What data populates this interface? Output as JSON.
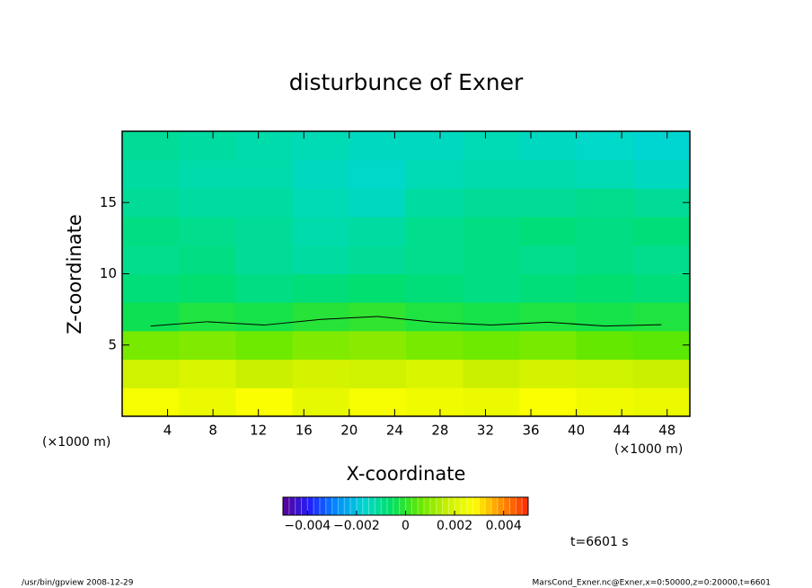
{
  "chart_data": {
    "type": "contour",
    "title": "disturbunce of Exner",
    "x_label": "X-coordinate",
    "y_label": "Z-coordinate",
    "x_unit_left": "(×1000 m)",
    "x_unit_right": "(×1000 m)",
    "x": [
      2.5,
      7.5,
      12.5,
      17.5,
      22.5,
      27.5,
      32.5,
      37.5,
      42.5,
      47.5
    ],
    "y": [
      1,
      3,
      5,
      7,
      9,
      11,
      13,
      15,
      17,
      19
    ],
    "z": [
      [
        0.0026,
        0.0024,
        0.0027,
        0.0023,
        0.0026,
        0.0025,
        0.0024,
        0.0027,
        0.0025,
        0.0024
      ],
      [
        0.0018,
        0.002,
        0.0017,
        0.0019,
        0.0018,
        0.002,
        0.0017,
        0.0019,
        0.0018,
        0.0017
      ],
      [
        0.0008,
        0.0009,
        0.0007,
        0.0009,
        0.001,
        0.0008,
        0.0007,
        0.0008,
        0.0006,
        0.0005
      ],
      [
        -0.0004,
        -0.0002,
        -0.0003,
        -0.0001,
        0.0,
        -0.0002,
        -0.0003,
        -0.0002,
        -0.0003,
        -0.0002
      ],
      [
        -0.0008,
        -0.0007,
        -0.0009,
        -0.0008,
        -0.0007,
        -0.0008,
        -0.0009,
        -0.0008,
        -0.0007,
        -0.0008
      ],
      [
        -0.001,
        -0.0009,
        -0.0011,
        -0.0012,
        -0.0011,
        -0.001,
        -0.0009,
        -0.001,
        -0.0009,
        -0.001
      ],
      [
        -0.0009,
        -0.001,
        -0.0011,
        -0.0013,
        -0.0012,
        -0.001,
        -0.0009,
        -0.0008,
        -0.0009,
        -0.0008
      ],
      [
        -0.0011,
        -0.0012,
        -0.0012,
        -0.0014,
        -0.0015,
        -0.0012,
        -0.0011,
        -0.0011,
        -0.001,
        -0.0011
      ],
      [
        -0.0012,
        -0.0013,
        -0.0013,
        -0.0015,
        -0.0016,
        -0.0014,
        -0.0013,
        -0.0013,
        -0.0014,
        -0.0015
      ],
      [
        -0.0011,
        -0.0012,
        -0.0013,
        -0.0014,
        -0.0015,
        -0.0015,
        -0.0014,
        -0.0015,
        -0.0016,
        -0.0017
      ]
    ],
    "contour_levels": [
      0
    ],
    "xlim": [
      0,
      50
    ],
    "ylim": [
      0,
      20
    ],
    "xticks": [
      4,
      8,
      12,
      16,
      20,
      24,
      28,
      32,
      36,
      40,
      44,
      48
    ],
    "yticks": [
      5,
      10,
      15
    ],
    "clim": [
      -0.005,
      0.005
    ],
    "colorbar_ticks": [
      {
        "value": -0.004,
        "label": "−0.004"
      },
      {
        "value": -0.002,
        "label": "−0.002"
      },
      0,
      0.002,
      0.004
    ],
    "colormap": [
      "#5a0096",
      "#2020ff",
      "#0090ff",
      "#00d8d0",
      "#00e060",
      "#60e800",
      "#c8f000",
      "#ffff00",
      "#ff9000",
      "#ff2800"
    ],
    "time_label": "t=6601 s",
    "footer_left": "/usr/bin/gpview   2008-12-29",
    "footer_right": "MarsCond_Exner.nc@Exner,x=0:50000,z=0:20000,t=6601"
  }
}
